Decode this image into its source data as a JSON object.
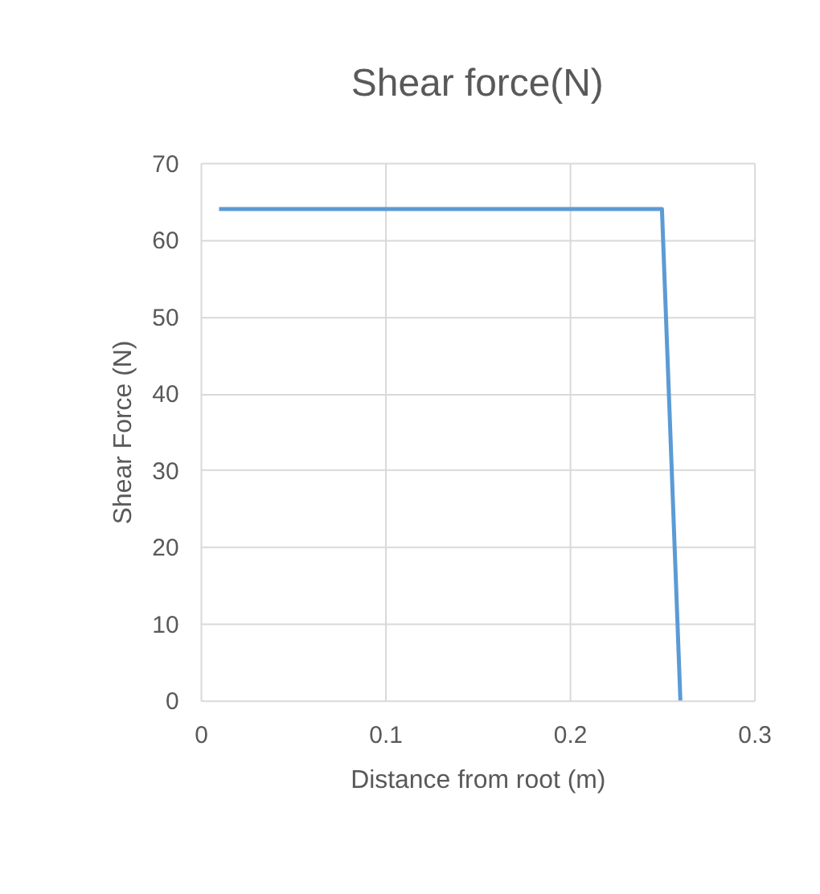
{
  "chart_data": {
    "type": "line",
    "title": "Shear force(N)",
    "xlabel": "Distance from root (m)",
    "ylabel": "Shear Force (N)",
    "x": [
      0.01,
      0.25,
      0.26
    ],
    "series": [
      {
        "color": "#5b9bd5",
        "values": [
          64,
          64,
          0
        ]
      }
    ],
    "xlim": [
      0,
      0.3
    ],
    "xticks": [
      0,
      0.1,
      0.2,
      0.3
    ],
    "ylim": [
      0,
      70
    ],
    "yticks": [
      0,
      10,
      20,
      30,
      40,
      50,
      60,
      70
    ],
    "grid": true,
    "marker": "none",
    "line_style": "solid"
  }
}
